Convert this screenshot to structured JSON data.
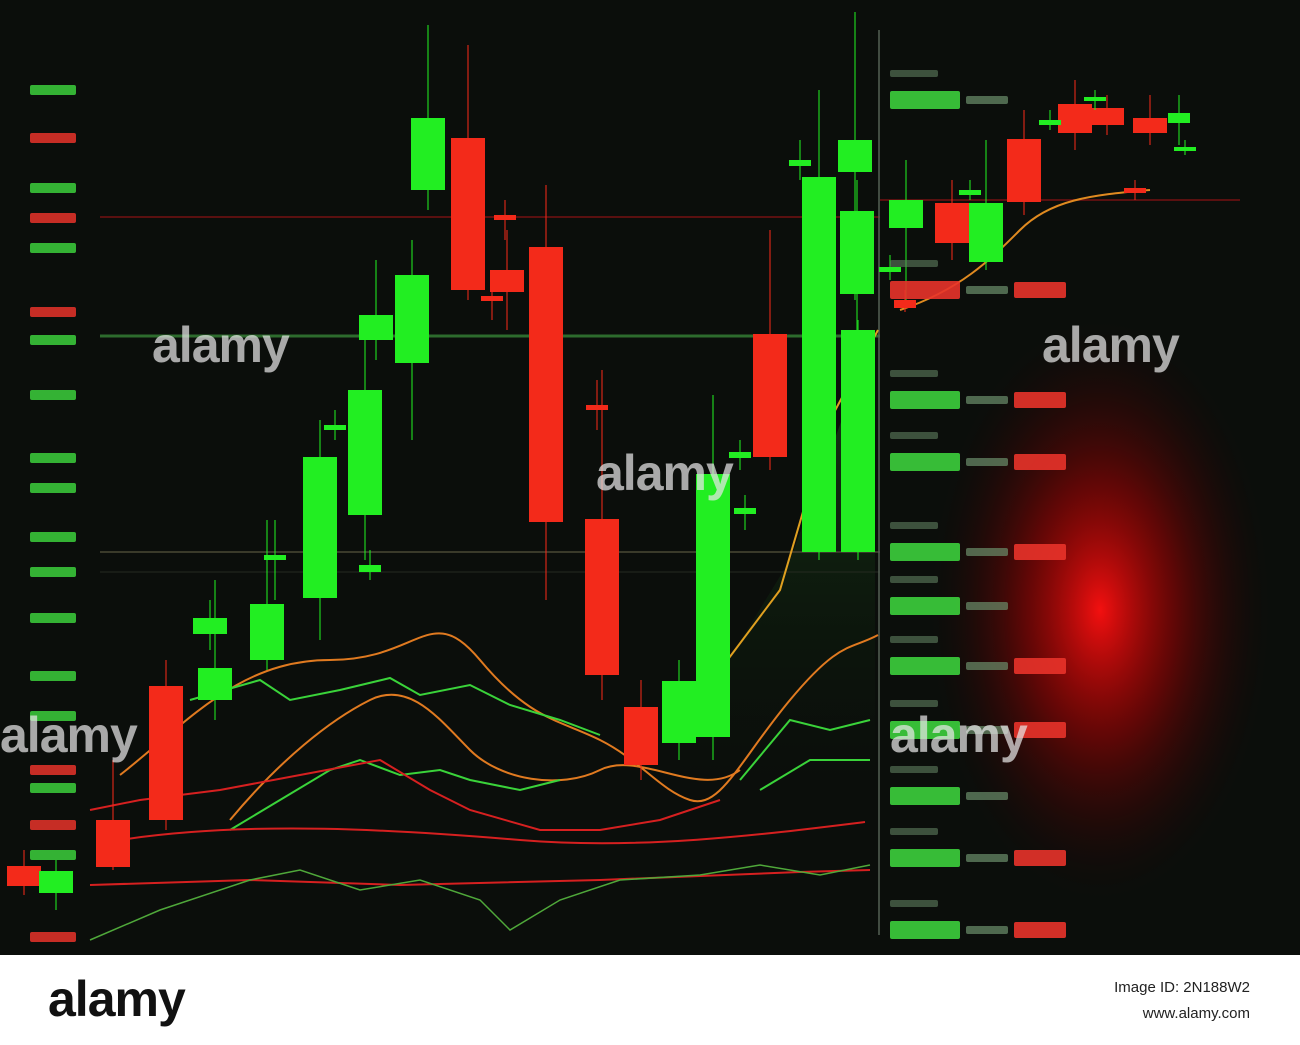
{
  "watermark": "alamy",
  "footer": {
    "brand": "alamy",
    "image_id": "Image ID: 2N188W2",
    "url": "www.alamy.com"
  }
}
